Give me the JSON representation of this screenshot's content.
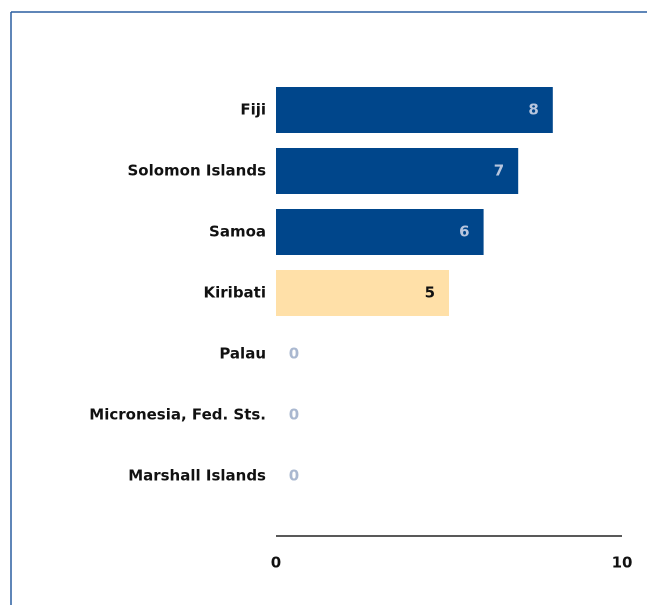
{
  "chart_data": {
    "type": "barh",
    "categories": [
      "Fiji",
      "Solomon Islands",
      "Samoa",
      "Kiribati",
      "Palau",
      "Micronesia, Fed. Sts.",
      "Marshall Islands"
    ],
    "values": [
      8,
      7,
      6,
      5,
      0,
      0,
      0
    ],
    "colors": [
      "#00468b",
      "#00468b",
      "#00468b",
      "#ffe0a8",
      "#00468b",
      "#00468b",
      "#00468b"
    ],
    "xlim": [
      0,
      10
    ],
    "xticks": [
      0,
      10
    ]
  }
}
